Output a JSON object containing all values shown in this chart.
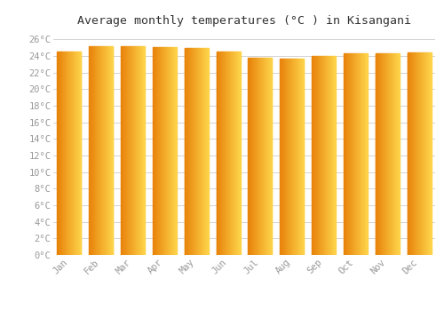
{
  "title": "Average monthly temperatures (°C ) in Kisangani",
  "months": [
    "Jan",
    "Feb",
    "Mar",
    "Apr",
    "May",
    "Jun",
    "Jul",
    "Aug",
    "Sep",
    "Oct",
    "Nov",
    "Dec"
  ],
  "values": [
    24.5,
    25.2,
    25.2,
    25.1,
    25.0,
    24.5,
    23.8,
    23.7,
    24.0,
    24.3,
    24.3,
    24.4
  ],
  "bar_color_left": "#E8820A",
  "bar_color_right": "#FDD44A",
  "background_color": "#ffffff",
  "grid_color": "#cccccc",
  "ylim": [
    0,
    27
  ],
  "ytick_step": 2,
  "title_fontsize": 9.5,
  "tick_fontsize": 7.5,
  "font_family": "monospace",
  "tick_color": "#999999"
}
